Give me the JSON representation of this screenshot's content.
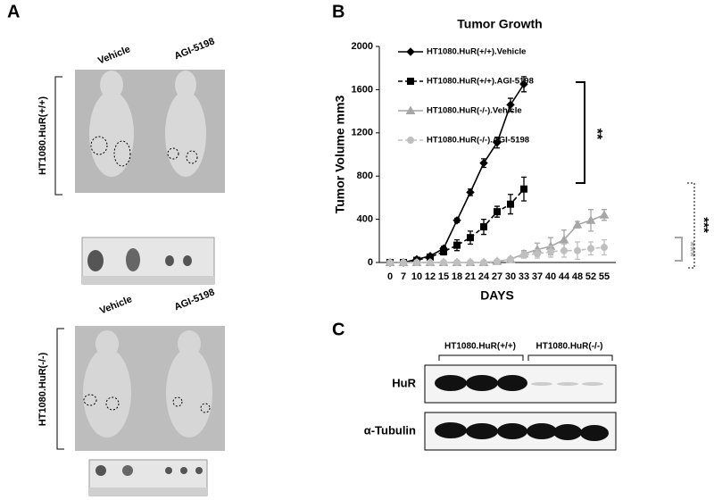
{
  "panel_a": {
    "label": "A",
    "treatments": [
      "Vehicle",
      "AGI-5198"
    ],
    "groups": [
      "HT1080.HuR(+/+)",
      "HT1080.HuR(-/-)"
    ]
  },
  "panel_b": {
    "label": "B"
  },
  "chart_data": {
    "type": "line",
    "title": "Tumor Growth",
    "x_label": "DAYS",
    "y_label": "Tumor Volume mm3",
    "categories": [
      "0",
      "7",
      "10",
      "12",
      "15",
      "18",
      "21",
      "24",
      "27",
      "30",
      "33",
      "37",
      "40",
      "44",
      "48",
      "52",
      "55"
    ],
    "series": [
      {
        "name": "HT1080.HuR(+/+).Vehicle",
        "color": "#000000",
        "dash": false,
        "marker": "diamond",
        "values": [
          0,
          0,
          30,
          60,
          130,
          390,
          650,
          920,
          1110,
          1460,
          1650,
          null,
          null,
          null,
          null,
          null,
          null
        ],
        "errors": [
          0,
          0,
          10,
          15,
          20,
          20,
          30,
          40,
          50,
          60,
          70,
          null,
          null,
          null,
          null,
          null,
          null
        ]
      },
      {
        "name": "HT1080.HuR(+/+).AGI-5198",
        "color": "#000000",
        "dash": true,
        "marker": "square",
        "values": [
          0,
          0,
          20,
          50,
          100,
          160,
          230,
          330,
          470,
          540,
          680,
          null,
          null,
          null,
          null,
          null,
          null
        ],
        "errors": [
          0,
          0,
          10,
          15,
          30,
          50,
          60,
          70,
          50,
          90,
          110,
          null,
          null,
          null,
          null,
          null,
          null
        ]
      },
      {
        "name": "HT1080.HuR(-/-).Vehicle",
        "color": "#a6a6a6",
        "dash": false,
        "marker": "triangle",
        "values": [
          0,
          0,
          0,
          0,
          0,
          0,
          0,
          0,
          10,
          30,
          80,
          120,
          150,
          210,
          350,
          390,
          440
        ],
        "errors": [
          0,
          0,
          0,
          0,
          0,
          0,
          0,
          0,
          10,
          10,
          30,
          60,
          80,
          90,
          30,
          100,
          50
        ]
      },
      {
        "name": "HT1080.HuR(-/-).AGI-5198",
        "color": "#bfbfbf",
        "dash": true,
        "marker": "circle",
        "values": [
          0,
          0,
          0,
          0,
          0,
          0,
          0,
          0,
          10,
          30,
          70,
          80,
          100,
          110,
          110,
          130,
          140
        ],
        "errors": [
          0,
          0,
          0,
          0,
          0,
          0,
          0,
          0,
          10,
          10,
          30,
          40,
          50,
          60,
          80,
          60,
          70
        ]
      }
    ],
    "ylim": [
      0,
      2000
    ],
    "yticks": [
      0,
      400,
      800,
      1200,
      1600,
      2000
    ],
    "grid": false,
    "annotations": [
      "**",
      "***",
      "***"
    ]
  },
  "panel_c": {
    "label": "C",
    "groups": [
      "HT1080.HuR(+/+)",
      "HT1080.HuR(-/-)"
    ],
    "rows": [
      "HuR",
      "α-Tubulin"
    ]
  }
}
